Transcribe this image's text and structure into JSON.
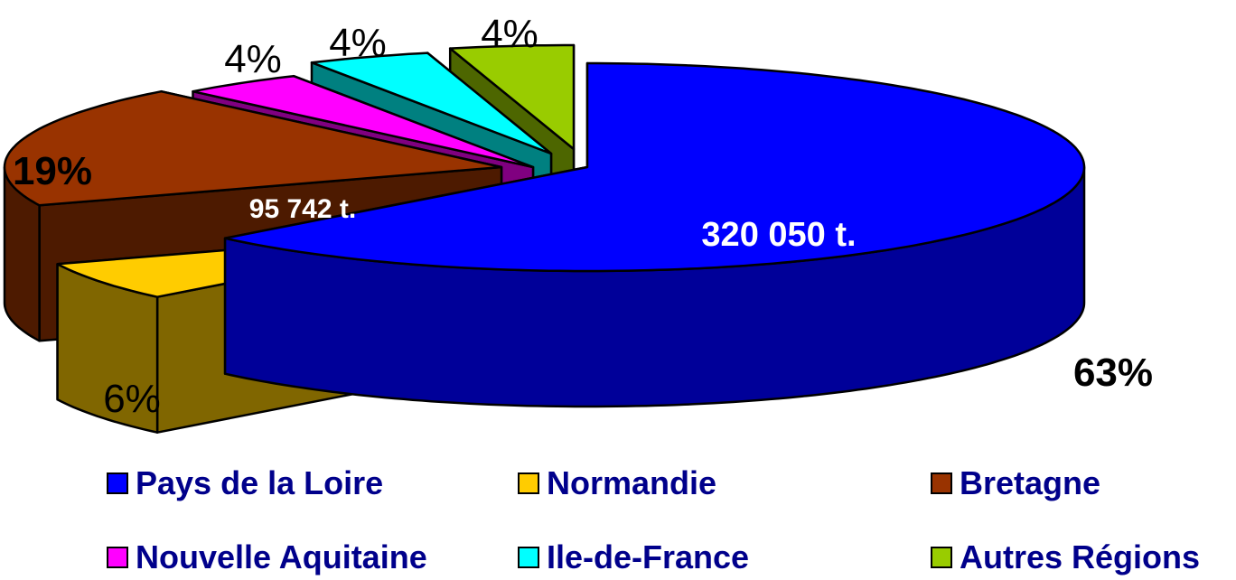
{
  "chart_data": {
    "type": "pie",
    "variant": "3d-exploded",
    "title": "",
    "categories": [
      "Pays de la Loire",
      "Normandie",
      "Bretagne",
      "Nouvelle Aquitaine",
      "Ile-de-France",
      "Autres Régions"
    ],
    "values": [
      63,
      6,
      19,
      4,
      4,
      4
    ],
    "value_unit": "%",
    "percent_labels": [
      "63%",
      "6%",
      "19%",
      "4%",
      "4%",
      "4%"
    ],
    "data_labels": [
      {
        "category": "Pays de la Loire",
        "text": "320 050 t."
      },
      {
        "category": "Bretagne",
        "text": "95 742 t."
      }
    ],
    "legend_position": "bottom",
    "colors": {
      "Pays de la Loire": "#0000ff",
      "Normandie": "#ffcc00",
      "Bretagne": "#993300",
      "Nouvelle Aquitaine": "#ff00ff",
      "Ile-de-France": "#00ffff",
      "Autres Régions": "#99cc00"
    },
    "side_colors": {
      "Pays de la Loire": "#000099",
      "Normandie": "#806600",
      "Bretagne": "#4d1a00",
      "Nouvelle Aquitaine": "#800080",
      "Ile-de-France": "#008080",
      "Autres Régions": "#4d6600"
    }
  }
}
